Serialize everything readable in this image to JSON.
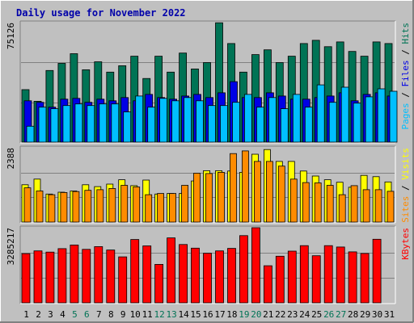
{
  "chart_data": {
    "type": "bar",
    "title": "Daily usage for November 2022",
    "categories": [
      "1",
      "2",
      "3",
      "4",
      "5",
      "6",
      "7",
      "8",
      "9",
      "10",
      "11",
      "12",
      "13",
      "14",
      "15",
      "16",
      "17",
      "18",
      "19",
      "20",
      "21",
      "22",
      "23",
      "24",
      "25",
      "26",
      "27",
      "28",
      "29",
      "30",
      "31"
    ],
    "weekend_days": [
      "5",
      "6",
      "12",
      "13",
      "19",
      "20",
      "26",
      "27"
    ],
    "colors": {
      "background": "#c0c0c0",
      "title": "#0000aa",
      "hits": "#007355",
      "files": "#0000e6",
      "pages": "#00bfff",
      "visits": "#ffff00",
      "sites": "#ff8c00",
      "kbytes": "#ff0000",
      "weekend_label": "#007355",
      "weekday_label": "#000000"
    },
    "panels": [
      {
        "id": "top",
        "max_label": "75126",
        "ylim": [
          0,
          75126
        ],
        "legend": [
          {
            "text": "Pages",
            "color": "#00bfff"
          },
          {
            "text": " / ",
            "color": "#000000"
          },
          {
            "text": "Files",
            "color": "#0000e6"
          },
          {
            "text": " / ",
            "color": "#000000"
          },
          {
            "text": "Hits",
            "color": "#007355"
          }
        ],
        "series": [
          {
            "name": "Hits",
            "color": "#007355",
            "values": [
              33000,
              25700,
              45000,
              49500,
              55600,
              45500,
              50500,
              44000,
              48000,
              54000,
              40000,
              54000,
              44000,
              56000,
              46000,
              50000,
              75000,
              62000,
              44000,
              55000,
              58000,
              50000,
              54000,
              62000,
              64000,
              60000,
              63000,
              57000,
              54000,
              63000,
              62000
            ]
          },
          {
            "name": "Files",
            "color": "#0000e6",
            "values": [
              26000,
              25000,
              22000,
              27000,
              27500,
              25000,
              27000,
              26000,
              28000,
              26000,
              30000,
              28000,
              27000,
              29000,
              30000,
              28000,
              31000,
              38000,
              28000,
              28000,
              31000,
              29000,
              27000,
              27000,
              28000,
              29000,
              31000,
              26000,
              30000,
              31000,
              29000
            ]
          },
          {
            "name": "Pages",
            "color": "#00bfff",
            "values": [
              10000,
              22000,
              21000,
              23000,
              24000,
              23000,
              24000,
              24000,
              19000,
              29000,
              22000,
              27500,
              26000,
              28000,
              26000,
              23000,
              23000,
              25000,
              30000,
              22000,
              28000,
              21000,
              30000,
              22000,
              36000,
              25000,
              34500,
              24500,
              28500,
              33500,
              32000
            ]
          }
        ]
      },
      {
        "id": "middle",
        "max_label": "2388",
        "ylim": [
          0,
          2388
        ],
        "legend": [
          {
            "text": "Sites",
            "color": "#ff8c00"
          },
          {
            "text": " / ",
            "color": "#000000"
          },
          {
            "text": "Visits",
            "color": "#ffff00"
          }
        ],
        "series": [
          {
            "name": "Visits",
            "color": "#ffff00",
            "values": [
              1200,
              1380,
              900,
              960,
              1000,
              1200,
              1140,
              1220,
              1360,
              1170,
              1350,
              900,
              920,
              920,
              1320,
              1650,
              1650,
              1640,
              1600,
              2180,
              2330,
              1950,
              1950,
              1640,
              1480,
              1360,
              1280,
              1120,
              1500,
              1460,
              1290
            ]
          },
          {
            "name": "Sites",
            "color": "#ff8c00",
            "values": [
              1100,
              1000,
              880,
              950,
              980,
              1020,
              1040,
              1080,
              1180,
              1130,
              880,
              920,
              920,
              1180,
              1570,
              1560,
              1600,
              2200,
              2288,
              1950,
              1950,
              1800,
              1380,
              1270,
              1260,
              1180,
              880,
              1170,
              1040,
              1040,
              990
            ]
          }
        ]
      },
      {
        "id": "bottom",
        "max_label": "3285217",
        "ylim": [
          0,
          3285217
        ],
        "legend": [
          {
            "text": "KBytes",
            "color": "#ff0000"
          }
        ],
        "series": [
          {
            "name": "KBytes",
            "color": "#ff0000",
            "values": [
              2150000,
              2270000,
              2220000,
              2370000,
              2530000,
              2340000,
              2460000,
              2310000,
              2010000,
              2770000,
              2490000,
              1680000,
              2840000,
              2550000,
              2390000,
              2170000,
              2270000,
              2380000,
              2940000,
              3285217,
              1620000,
              2040000,
              2260000,
              2500000,
              2060000,
              2500000,
              2440000,
              2230000,
              2160000,
              2780000,
              0
            ]
          }
        ]
      }
    ]
  }
}
